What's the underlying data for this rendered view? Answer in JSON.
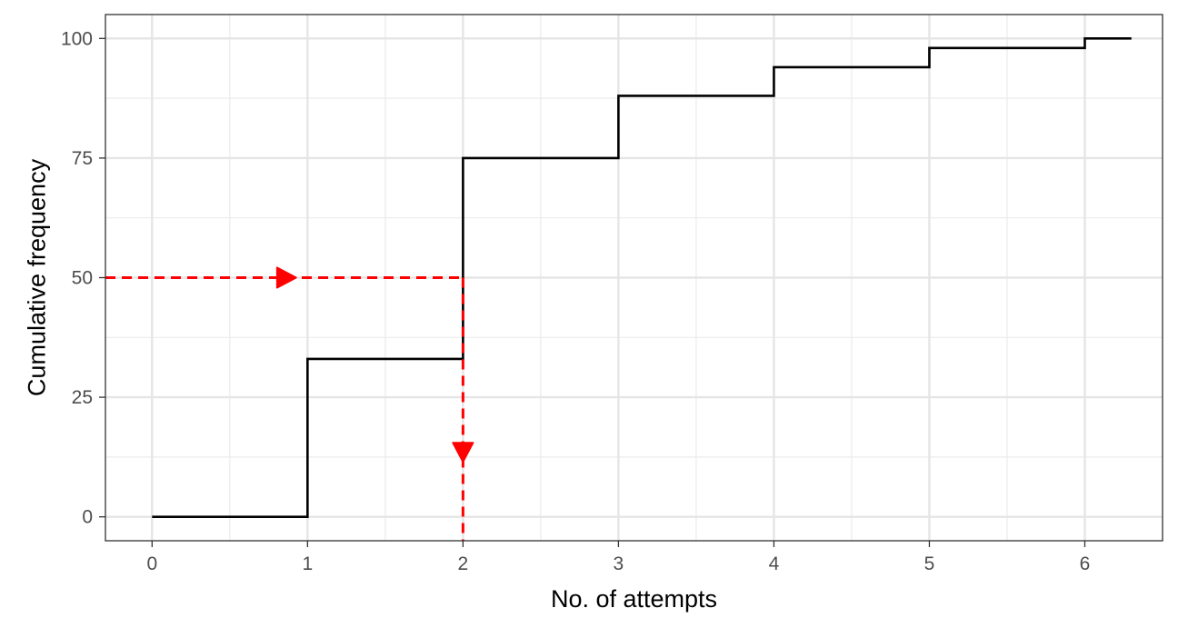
{
  "chart_data": {
    "type": "line",
    "subtype": "step",
    "title": "",
    "xlabel": "No. of attempts",
    "ylabel": "Cumulative frequency",
    "xlim": [
      -0.3,
      6.5
    ],
    "ylim": [
      -5,
      105
    ],
    "x_ticks": [
      0,
      1,
      2,
      3,
      4,
      5,
      6
    ],
    "y_ticks": [
      0,
      25,
      50,
      75,
      100
    ],
    "grid": true,
    "legend": "none",
    "series": [
      {
        "kind": "step",
        "color": "#000000",
        "points": [
          {
            "x": 0,
            "y": 0
          },
          {
            "x": 1,
            "y": 33
          },
          {
            "x": 2,
            "y": 75
          },
          {
            "x": 3,
            "y": 88
          },
          {
            "x": 4,
            "y": 94
          },
          {
            "x": 5,
            "y": 98
          },
          {
            "x": 6,
            "y": 100
          },
          {
            "x": 6.3,
            "y": 100
          }
        ]
      }
    ],
    "annotations": [
      {
        "kind": "dashed-arrow-horizontal",
        "color": "#ff0000",
        "from": {
          "x": -0.3,
          "y": 50
        },
        "to": {
          "x": 2,
          "y": 50
        },
        "arrowhead_at": {
          "x": 0.85,
          "y": 50
        },
        "arrowhead_direction": "right"
      },
      {
        "kind": "dashed-arrow-vertical",
        "color": "#ff0000",
        "from": {
          "x": 2,
          "y": 50
        },
        "to": {
          "x": 2,
          "y": -5
        },
        "arrowhead_at": {
          "x": 2,
          "y": 14
        },
        "arrowhead_direction": "down"
      }
    ]
  }
}
